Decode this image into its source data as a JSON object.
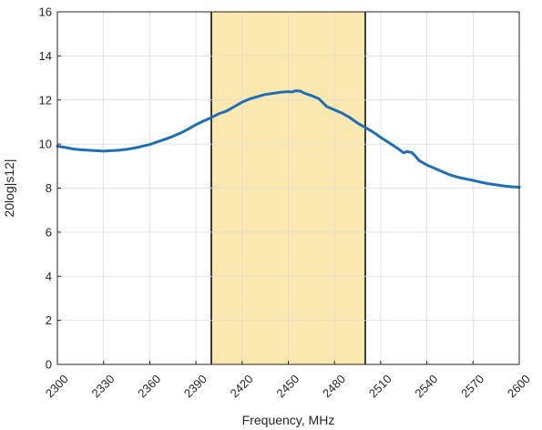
{
  "chart_data": {
    "type": "line",
    "title": "",
    "xlabel": "Frequency, MHz",
    "ylabel": "20log|s12|",
    "xlim": [
      2300,
      2600
    ],
    "ylim": [
      0,
      16
    ],
    "xticks": [
      "2300",
      "2330",
      "2360",
      "2390",
      "2420",
      "2450",
      "2480",
      "2510",
      "2540",
      "2570",
      "2600"
    ],
    "yticks": [
      "0",
      "2",
      "4",
      "6",
      "8",
      "10",
      "12",
      "14",
      "16"
    ],
    "grid": true,
    "highlight_band": {
      "x_start": 2400,
      "x_end": 2500,
      "color": "#f7d878"
    },
    "series": [
      {
        "color": "#1f6fb8",
        "x": [
          2300,
          2305,
          2310,
          2315,
          2320,
          2325,
          2330,
          2335,
          2340,
          2345,
          2350,
          2355,
          2360,
          2365,
          2370,
          2375,
          2380,
          2385,
          2390,
          2395,
          2400,
          2405,
          2410,
          2415,
          2420,
          2425,
          2430,
          2435,
          2440,
          2445,
          2450,
          2452,
          2455,
          2458,
          2460,
          2465,
          2470,
          2475,
          2480,
          2485,
          2490,
          2495,
          2500,
          2505,
          2510,
          2515,
          2520,
          2525,
          2527,
          2530,
          2532,
          2535,
          2540,
          2545,
          2550,
          2555,
          2560,
          2565,
          2570,
          2575,
          2580,
          2585,
          2590,
          2595,
          2600
        ],
        "y": [
          9.9,
          9.85,
          9.78,
          9.74,
          9.72,
          9.7,
          9.68,
          9.7,
          9.72,
          9.76,
          9.82,
          9.9,
          9.98,
          10.1,
          10.22,
          10.35,
          10.5,
          10.68,
          10.88,
          11.05,
          11.2,
          11.38,
          11.5,
          11.7,
          11.9,
          12.05,
          12.15,
          12.25,
          12.3,
          12.35,
          12.38,
          12.36,
          12.42,
          12.4,
          12.32,
          12.2,
          12.05,
          11.7,
          11.55,
          11.4,
          11.2,
          10.95,
          10.75,
          10.55,
          10.3,
          10.08,
          9.85,
          9.6,
          9.66,
          9.62,
          9.5,
          9.25,
          9.05,
          8.9,
          8.75,
          8.6,
          8.5,
          8.42,
          8.35,
          8.27,
          8.2,
          8.15,
          8.1,
          8.06,
          8.04
        ]
      }
    ]
  }
}
